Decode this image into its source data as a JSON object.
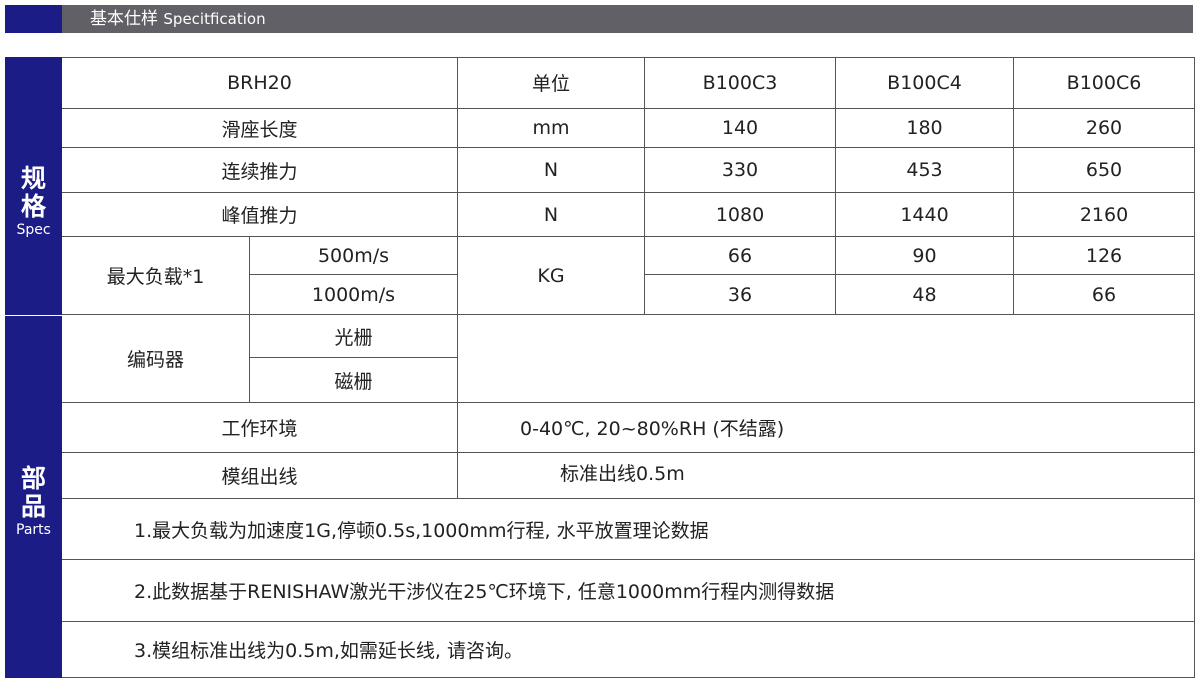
{
  "header": {
    "title_cn": "基本仕样",
    "title_en": "Specitfication"
  },
  "sections": {
    "spec": {
      "cn1": "规",
      "cn2": "格",
      "en": "Spec"
    },
    "parts": {
      "cn1": "部",
      "cn2": "品",
      "en": "Parts"
    }
  },
  "table": {
    "header": {
      "model": "BRH20",
      "unit": "单位",
      "cols": [
        "B100C3",
        "B100C4",
        "B100C6"
      ]
    },
    "rows": [
      {
        "label": "滑座长度",
        "unit": "mm",
        "values": [
          "140",
          "180",
          "260"
        ]
      },
      {
        "label": "连续推力",
        "unit": "N",
        "values": [
          "330",
          "453",
          "650"
        ]
      },
      {
        "label": "峰值推力",
        "unit": "N",
        "values": [
          "1080",
          "1440",
          "2160"
        ]
      }
    ],
    "max_load": {
      "label": "最大负载*1",
      "unit": "KG",
      "sub": [
        {
          "label": "500m/s",
          "values": [
            "66",
            "90",
            "126"
          ]
        },
        {
          "label": "1000m/s",
          "values": [
            "36",
            "48",
            "66"
          ]
        }
      ]
    },
    "encoder": {
      "label": "编码器",
      "sub": [
        "光栅",
        "磁栅"
      ]
    },
    "environment": {
      "label": "工作环境",
      "value": "0-40℃, 20~80%RH (不结露)"
    },
    "cable": {
      "label": "模组出线",
      "value": "标准出线0.5m"
    },
    "notes": [
      "1.最大负载为加速度1G,停顿0.5s,1000mm行程, 水平放置理论数据",
      "2.此数据基于RENISHAW激光干涉仪在25℃环境下, 任意1000mm行程内测得数据",
      "3.模组标准出线为0.5m,如需延长线, 请咨询。"
    ]
  }
}
